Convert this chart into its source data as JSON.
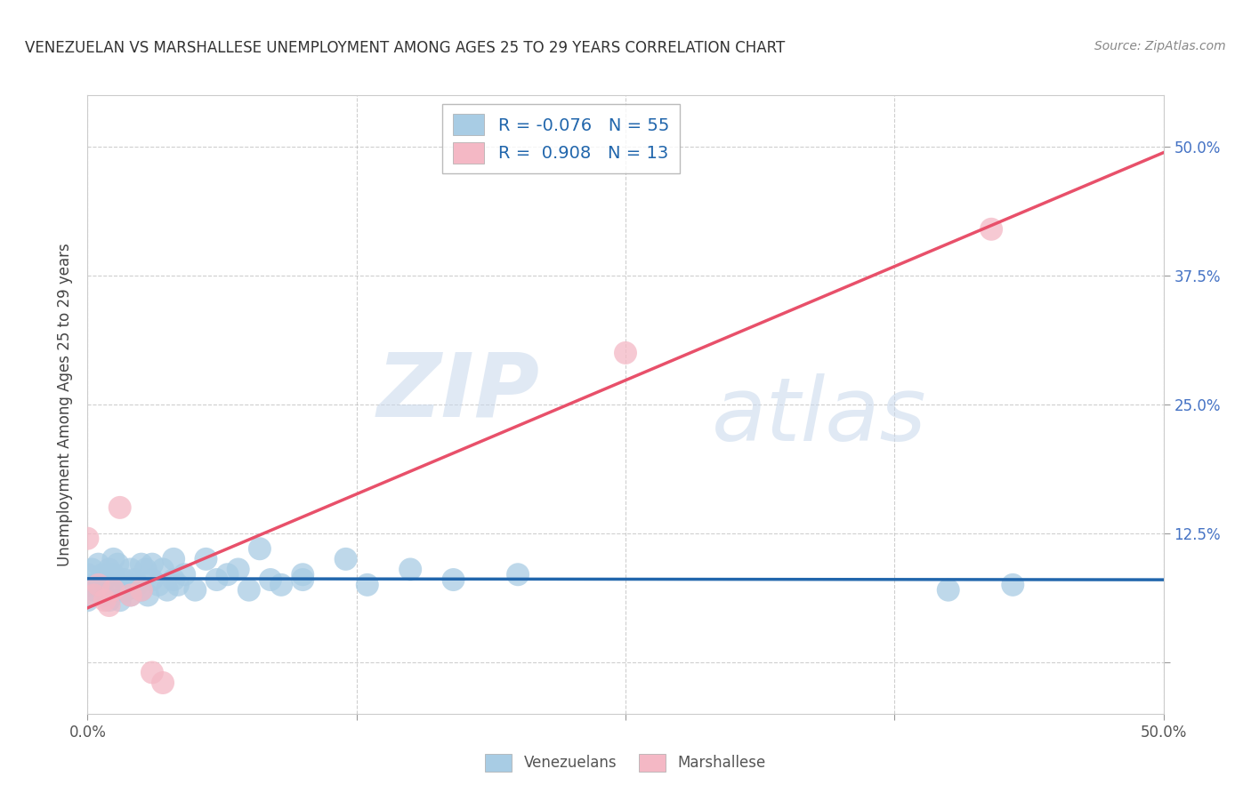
{
  "title": "VENEZUELAN VS MARSHALLESE UNEMPLOYMENT AMONG AGES 25 TO 29 YEARS CORRELATION CHART",
  "source": "Source: ZipAtlas.com",
  "ylabel": "Unemployment Among Ages 25 to 29 years",
  "xlim": [
    0.0,
    0.5
  ],
  "ylim": [
    -0.05,
    0.55
  ],
  "xticks": [
    0.0,
    0.125,
    0.25,
    0.375,
    0.5
  ],
  "yticks": [
    0.0,
    0.125,
    0.25,
    0.375,
    0.5
  ],
  "xticklabels": [
    "0.0%",
    "",
    "",
    "",
    "50.0%"
  ],
  "yticklabels": [
    "",
    "12.5%",
    "25.0%",
    "37.5%",
    "50.0%"
  ],
  "venezuelan_R": -0.076,
  "venezuelan_N": 55,
  "marshallese_R": 0.908,
  "marshallese_N": 13,
  "venezuelan_color": "#a8cce4",
  "marshallese_color": "#f4b8c5",
  "venezuelan_line_color": "#2166ac",
  "marshallese_line_color": "#e8506a",
  "legend_text_color": "#2166ac",
  "watermark_zip": "ZIP",
  "watermark_atlas": "atlas",
  "background_color": "#ffffff",
  "grid_color": "#bbbbbb",
  "venezuelan_x": [
    0.0,
    0.0,
    0.0,
    0.002,
    0.003,
    0.005,
    0.005,
    0.007,
    0.008,
    0.008,
    0.01,
    0.01,
    0.01,
    0.012,
    0.012,
    0.014,
    0.015,
    0.015,
    0.017,
    0.018,
    0.02,
    0.02,
    0.022,
    0.023,
    0.025,
    0.025,
    0.027,
    0.028,
    0.03,
    0.03,
    0.033,
    0.035,
    0.037,
    0.04,
    0.04,
    0.042,
    0.045,
    0.05,
    0.055,
    0.06,
    0.065,
    0.07,
    0.075,
    0.08,
    0.085,
    0.09,
    0.1,
    0.1,
    0.12,
    0.13,
    0.15,
    0.17,
    0.2,
    0.4,
    0.43
  ],
  "venezuelan_y": [
    0.085,
    0.06,
    0.075,
    0.09,
    0.07,
    0.095,
    0.075,
    0.085,
    0.065,
    0.08,
    0.09,
    0.075,
    0.06,
    0.1,
    0.085,
    0.095,
    0.075,
    0.06,
    0.08,
    0.07,
    0.065,
    0.09,
    0.08,
    0.075,
    0.095,
    0.07,
    0.09,
    0.065,
    0.08,
    0.095,
    0.075,
    0.09,
    0.07,
    0.1,
    0.08,
    0.075,
    0.085,
    0.07,
    0.1,
    0.08,
    0.085,
    0.09,
    0.07,
    0.11,
    0.08,
    0.075,
    0.085,
    0.08,
    0.1,
    0.075,
    0.09,
    0.08,
    0.085,
    0.07,
    0.075
  ],
  "marshallese_x": [
    0.0,
    0.003,
    0.005,
    0.008,
    0.01,
    0.012,
    0.015,
    0.02,
    0.025,
    0.03,
    0.035,
    0.25,
    0.42
  ],
  "marshallese_y": [
    0.12,
    0.065,
    0.075,
    0.06,
    0.055,
    0.07,
    0.15,
    0.065,
    0.07,
    -0.01,
    -0.02,
    0.3,
    0.42
  ],
  "marshallese_outlier_x": [
    0.25
  ],
  "marshallese_outlier_y": [
    0.3
  ]
}
